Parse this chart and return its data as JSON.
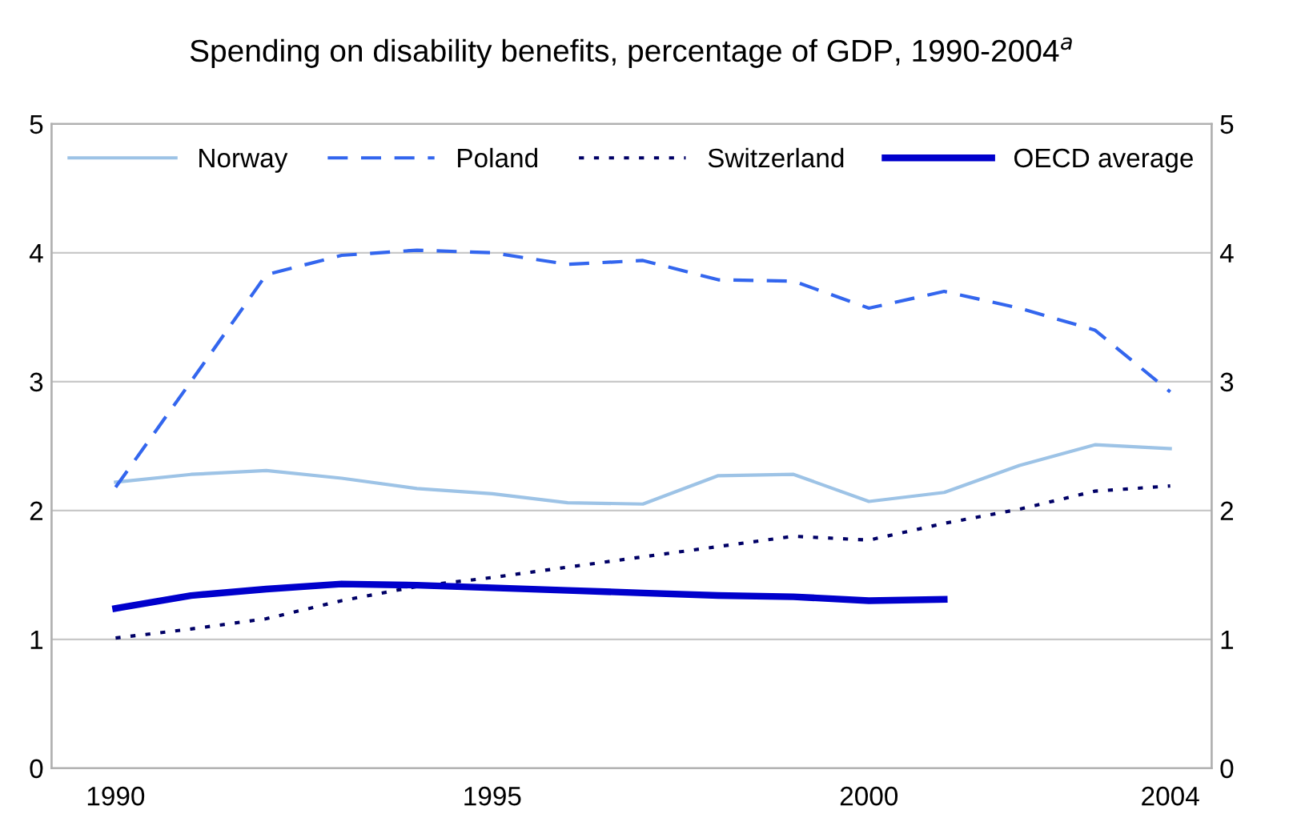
{
  "chart_data": {
    "type": "line",
    "title": "Spending on disability benefits, percentage of GDP, 1990-2004$^{a}$",
    "x": [
      1990,
      1991,
      1992,
      1993,
      1994,
      1995,
      1996,
      1997,
      1998,
      1999,
      2000,
      2001,
      2002,
      2003,
      2004
    ],
    "series": [
      {
        "name": "Norway",
        "color": "#9dc3e6",
        "line_style": "solid",
        "values": [
          2.22,
          2.28,
          2.31,
          2.25,
          2.17,
          2.13,
          2.06,
          2.05,
          2.27,
          2.28,
          2.07,
          2.14,
          2.35,
          2.51,
          2.48
        ]
      },
      {
        "name": "Poland",
        "color": "#3366ee",
        "line_style": "dashed",
        "values": [
          2.18,
          3.0,
          3.83,
          3.98,
          4.02,
          4.0,
          3.91,
          3.94,
          3.79,
          3.78,
          3.57,
          3.7,
          3.57,
          3.4,
          2.92
        ]
      },
      {
        "name": "Switzerland",
        "color": "#000066",
        "line_style": "dotted",
        "values": [
          1.01,
          1.08,
          1.16,
          1.3,
          1.41,
          1.48,
          1.56,
          1.64,
          1.72,
          1.8,
          1.77,
          1.9,
          2.01,
          2.15,
          2.19
        ]
      },
      {
        "name": "OECD average",
        "color": "#0000cc",
        "line_style": "solid",
        "values": [
          1.24,
          1.34,
          1.39,
          1.43,
          1.42,
          1.4,
          1.38,
          1.36,
          1.34,
          1.33,
          1.3,
          1.31,
          null,
          null,
          null
        ]
      }
    ],
    "xlim": [
      1989.15,
      2004.55
    ],
    "xticks": [
      1990,
      1995,
      2000,
      2004
    ],
    "ylim": [
      0,
      5
    ],
    "yticks": [
      0,
      1,
      2,
      3,
      4,
      5
    ],
    "y2lim": [
      0,
      5
    ],
    "y2ticks": [
      0,
      1,
      2,
      3,
      4,
      5
    ],
    "grid": "y",
    "legend": "top",
    "marker": "none"
  }
}
